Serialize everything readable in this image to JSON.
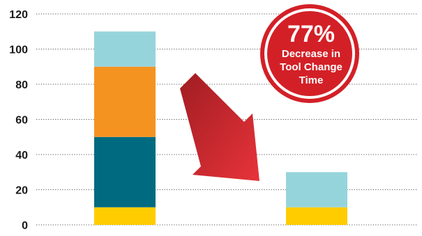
{
  "chart_data": {
    "type": "bar",
    "stacked": true,
    "categories": [
      "",
      ""
    ],
    "series": [
      {
        "color": "#ffcc00",
        "values": [
          10,
          10
        ]
      },
      {
        "color": "#006b80",
        "values": [
          40,
          0
        ]
      },
      {
        "color": "#f59321",
        "values": [
          40,
          0
        ]
      },
      {
        "color": "#96d4dc",
        "values": [
          20,
          20
        ]
      }
    ],
    "ylim": [
      0,
      120
    ],
    "yticks": [
      "0",
      "20",
      "40",
      "60",
      "80",
      "100",
      "120"
    ],
    "grid": true,
    "legend": "none",
    "xlabel": "",
    "ylabel": "",
    "title": ""
  },
  "annotation": {
    "badge": {
      "percent": "77%",
      "line1": "Decrease in",
      "line2": "Tool Change",
      "line3": "Time",
      "color": "#d32027",
      "ring_color": "#d32027"
    },
    "arrow": {
      "color_light": "#e8333a",
      "color_dark": "#a01d22"
    }
  }
}
